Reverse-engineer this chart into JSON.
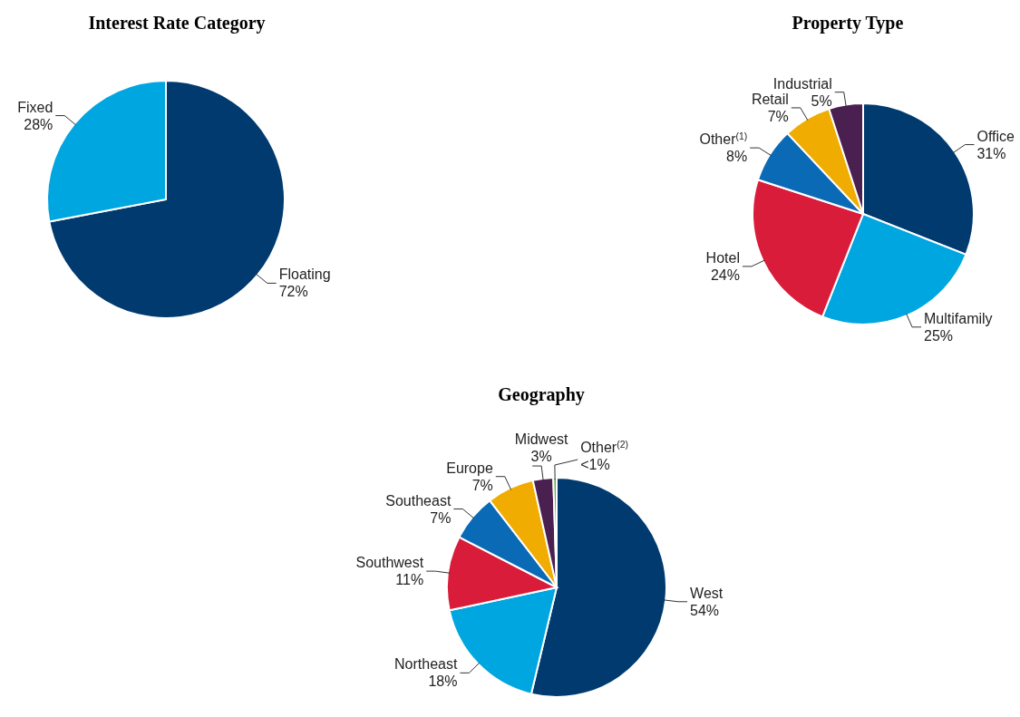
{
  "chart_data": [
    {
      "type": "pie",
      "title": "Interest Rate Category",
      "categories": [
        "Floating",
        "Fixed"
      ],
      "values": [
        72,
        28
      ],
      "colors": [
        "#003a6e",
        "#00a6e0"
      ],
      "value_labels": [
        "72%",
        "28%"
      ]
    },
    {
      "type": "pie",
      "title": "Property Type",
      "categories": [
        "Office",
        "Multifamily",
        "Hotel",
        "Other$^{(1)}$",
        "Retail",
        "Industrial"
      ],
      "values": [
        31,
        25,
        24,
        8,
        7,
        5
      ],
      "colors": [
        "#003a6e",
        "#00a6e0",
        "#d91c3a",
        "#0a6ab5",
        "#f0ac00",
        "#4a2050"
      ],
      "value_labels": [
        "31%",
        "25%",
        "24%",
        "8%",
        "7%",
        "5%"
      ]
    },
    {
      "type": "pie",
      "title": "Geography",
      "categories": [
        "West",
        "Northeast",
        "Southwest",
        "Southeast",
        "Europe",
        "Midwest",
        "Other$^{(2)}$"
      ],
      "values": [
        54,
        18,
        11,
        7,
        7,
        3,
        0.5
      ],
      "colors": [
        "#003a6e",
        "#00a6e0",
        "#d91c3a",
        "#0a6ab5",
        "#f0ac00",
        "#4a2050",
        "#6ab04c"
      ],
      "value_labels": [
        "54%",
        "18%",
        "11%",
        "7%",
        "7%",
        "3%",
        "<1%"
      ]
    }
  ]
}
